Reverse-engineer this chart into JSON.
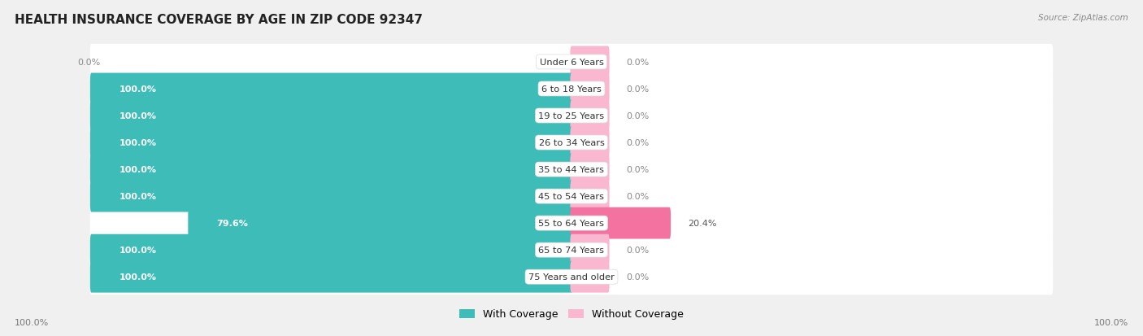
{
  "title": "HEALTH INSURANCE COVERAGE BY AGE IN ZIP CODE 92347",
  "source": "Source: ZipAtlas.com",
  "categories": [
    "Under 6 Years",
    "6 to 18 Years",
    "19 to 25 Years",
    "26 to 34 Years",
    "35 to 44 Years",
    "45 to 54 Years",
    "55 to 64 Years",
    "65 to 74 Years",
    "75 Years and older"
  ],
  "with_coverage": [
    0.0,
    100.0,
    100.0,
    100.0,
    100.0,
    100.0,
    79.6,
    100.0,
    100.0
  ],
  "without_coverage": [
    0.0,
    0.0,
    0.0,
    0.0,
    0.0,
    0.0,
    20.4,
    0.0,
    0.0
  ],
  "color_with": "#3DBCB8",
  "color_without": "#F472A0",
  "color_without_light": "#F9B8CF",
  "bg_color": "#f2f2f2",
  "row_bg_even": "#ffffff",
  "row_bg_odd": "#f7f7f7",
  "title_fontsize": 11,
  "label_fontsize": 8,
  "legend_label_with": "With Coverage",
  "legend_label_without": "Without Coverage",
  "x_left_label": "100.0%",
  "x_right_label": "100.0%",
  "max_val": 100
}
